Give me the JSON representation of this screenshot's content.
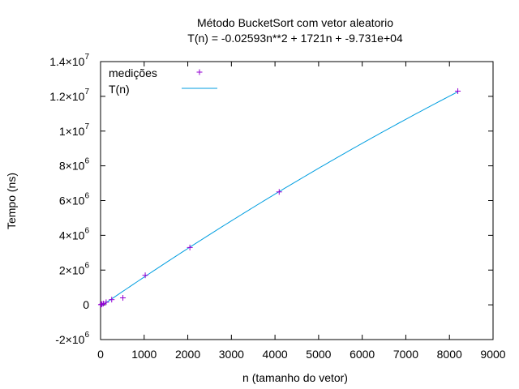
{
  "chart_data": {
    "type": "scatter",
    "title": "Método BucketSort com vetor aleatorio",
    "subtitle": "T(n) = -0.02593n**2 + 1721n + -9.731e+04",
    "xlabel": "n (tamanho do vetor)",
    "ylabel": "Tempo (ns)",
    "xlim": [
      0,
      9000
    ],
    "ylim": [
      -2000000,
      14000000
    ],
    "x_ticks": [
      0,
      1000,
      2000,
      3000,
      4000,
      5000,
      6000,
      7000,
      8000,
      9000
    ],
    "x_tick_labels": [
      "0",
      "1000",
      "2000",
      "3000",
      "4000",
      "5000",
      "6000",
      "7000",
      "8000",
      "9000"
    ],
    "y_ticks": [
      {
        "value": -2000000,
        "mantissa": "-2×10",
        "exponent": "6"
      },
      {
        "value": 0,
        "mantissa": "0",
        "exponent": ""
      },
      {
        "value": 2000000,
        "mantissa": "2×10",
        "exponent": "6"
      },
      {
        "value": 4000000,
        "mantissa": "4×10",
        "exponent": "6"
      },
      {
        "value": 6000000,
        "mantissa": "6×10",
        "exponent": "6"
      },
      {
        "value": 8000000,
        "mantissa": "8×10",
        "exponent": "6"
      },
      {
        "value": 10000000,
        "mantissa": "1×10",
        "exponent": "7"
      },
      {
        "value": 12000000,
        "mantissa": "1.2×10",
        "exponent": "7"
      },
      {
        "value": 14000000,
        "mantissa": "1.4×10",
        "exponent": "7"
      }
    ],
    "grid": false,
    "legend_position": "top-left",
    "series": [
      {
        "name": "medições",
        "kind": "points",
        "marker": "plus",
        "color": "#9400d3",
        "x": [
          8,
          16,
          32,
          64,
          128,
          256,
          512,
          1024,
          2048,
          4096,
          8192
        ],
        "y": [
          10000,
          20000,
          40000,
          70000,
          150000,
          300000,
          400000,
          1700000,
          3300000,
          6500000,
          12300000
        ]
      },
      {
        "name": "T(n)",
        "kind": "curve",
        "color": "#009ee0",
        "model": {
          "a": -0.02593,
          "b": 1721,
          "c": -97310
        },
        "x_range": [
          0,
          8192
        ]
      }
    ]
  }
}
